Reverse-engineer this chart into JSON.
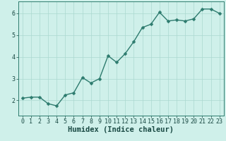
{
  "xlabel": "Humidex (Indice chaleur)",
  "x": [
    0,
    1,
    2,
    3,
    4,
    5,
    6,
    7,
    8,
    9,
    10,
    11,
    12,
    13,
    14,
    15,
    16,
    17,
    18,
    19,
    20,
    21,
    22,
    23
  ],
  "y": [
    2.1,
    2.15,
    2.15,
    1.85,
    1.75,
    2.25,
    2.35,
    3.05,
    2.8,
    3.0,
    4.05,
    3.75,
    4.15,
    4.7,
    5.35,
    5.5,
    6.05,
    5.65,
    5.7,
    5.65,
    5.75,
    6.2,
    6.2,
    6.0
  ],
  "line_color": "#2d7b6e",
  "marker": "D",
  "marker_size": 2.5,
  "bg_color": "#cff0ea",
  "grid_color": "#aad8d0",
  "axis_color": "#2d7b6e",
  "tick_color": "#1a4a44",
  "ylim": [
    1.3,
    6.55
  ],
  "xlim": [
    -0.5,
    23.5
  ],
  "yticks": [
    2,
    3,
    4,
    5,
    6
  ],
  "xticks": [
    0,
    1,
    2,
    3,
    4,
    5,
    6,
    7,
    8,
    9,
    10,
    11,
    12,
    13,
    14,
    15,
    16,
    17,
    18,
    19,
    20,
    21,
    22,
    23
  ],
  "xlabel_fontsize": 7.5,
  "tick_fontsize": 6.0,
  "linewidth": 1.0
}
